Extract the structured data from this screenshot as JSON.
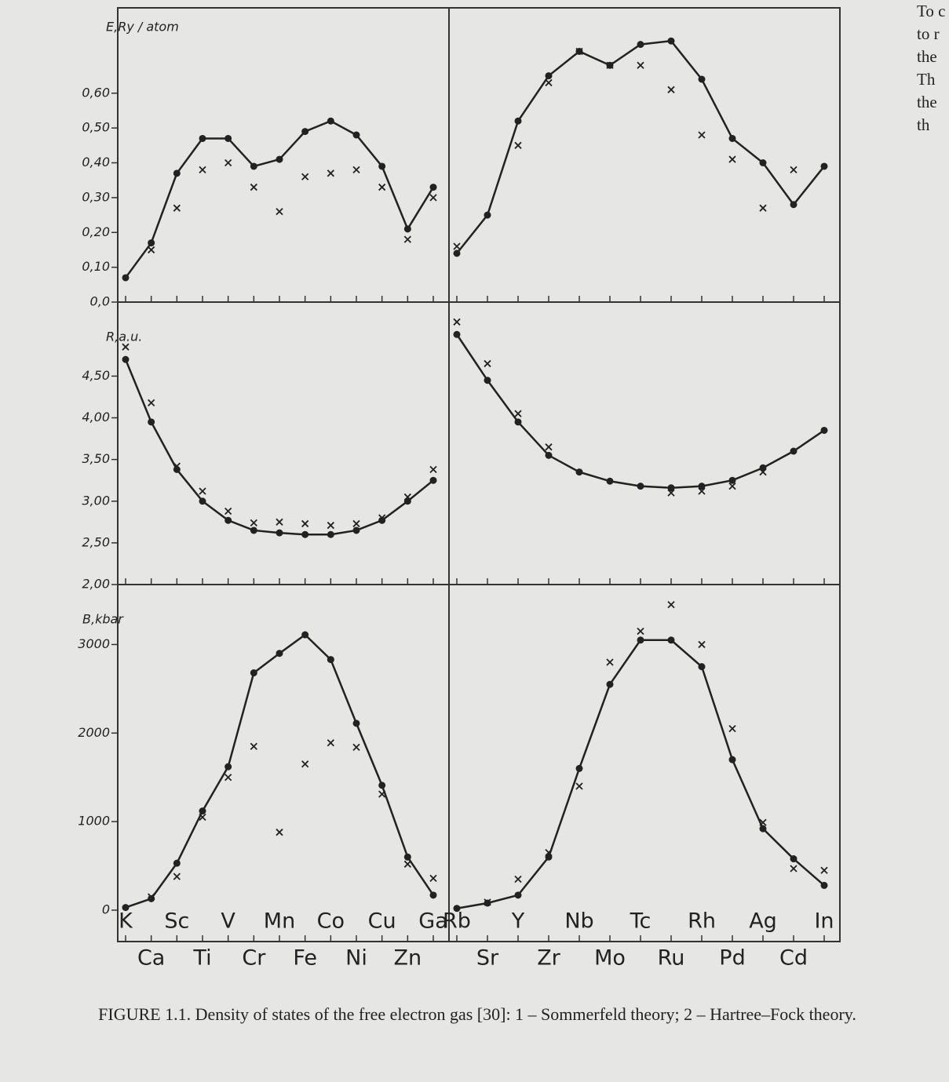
{
  "chart_data": [
    {
      "type": "line",
      "ylabel": "E,Ry / atom",
      "ylim": [
        0,
        0.8
      ],
      "yticks": [
        {
          "value": 0,
          "label": "0,0"
        },
        {
          "value": 0.1,
          "label": "0,10"
        },
        {
          "value": 0.2,
          "label": "0,20"
        },
        {
          "value": 0.3,
          "label": "0,30"
        },
        {
          "value": 0.4,
          "label": "0,40"
        },
        {
          "value": 0.5,
          "label": "0,50"
        },
        {
          "value": 0.6,
          "label": "0,60"
        }
      ],
      "series": [
        {
          "color": "#222222",
          "marker": "dot",
          "values": [
            0.07,
            0.17,
            0.37,
            0.47,
            0.47,
            0.39,
            0.41,
            0.49,
            0.52,
            0.48,
            0.39,
            0.21,
            0.33
          ]
        },
        {
          "color": "#222222",
          "marker": "cross",
          "values": [
            null,
            0.15,
            0.27,
            0.38,
            0.4,
            0.33,
            0.26,
            0.36,
            0.37,
            0.38,
            0.33,
            0.18,
            0.3
          ]
        }
      ]
    },
    {
      "type": "line",
      "ylim": [
        0,
        0.8
      ],
      "series": [
        {
          "color": "#222222",
          "marker": "dot",
          "values": [
            0.14,
            0.25,
            0.52,
            0.65,
            0.72,
            0.68,
            0.74,
            0.75,
            0.64,
            0.47,
            0.4,
            0.28,
            0.39
          ]
        },
        {
          "color": "#222222",
          "marker": "cross",
          "values": [
            0.16,
            null,
            0.45,
            0.63,
            0.72,
            0.68,
            0.68,
            0.61,
            0.48,
            0.41,
            0.27,
            0.38,
            null
          ]
        }
      ]
    },
    {
      "type": "line",
      "ylabel": "R,a.u.",
      "ylim": [
        2,
        5.2
      ],
      "yticks": [
        {
          "value": 2,
          "label": "2,00"
        },
        {
          "value": 2.5,
          "label": "2,50"
        },
        {
          "value": 3,
          "label": "3,00"
        },
        {
          "value": 3.5,
          "label": "3,50"
        },
        {
          "value": 4,
          "label": "4,00"
        },
        {
          "value": 4.5,
          "label": "4,50"
        }
      ],
      "series": [
        {
          "color": "#222222",
          "marker": "dot",
          "values": [
            4.7,
            3.95,
            3.38,
            3.0,
            2.77,
            2.65,
            2.62,
            2.6,
            2.6,
            2.65,
            2.77,
            3.0,
            3.25
          ]
        },
        {
          "color": "#222222",
          "marker": "cross",
          "values": [
            4.85,
            4.18,
            3.42,
            3.12,
            2.88,
            2.74,
            2.75,
            2.73,
            2.71,
            2.73,
            2.8,
            3.05,
            3.38
          ]
        }
      ]
    },
    {
      "type": "line",
      "ylim": [
        2,
        5.2
      ],
      "series": [
        {
          "color": "#222222",
          "marker": "dot",
          "values": [
            5.0,
            4.45,
            3.95,
            3.55,
            3.35,
            3.24,
            3.18,
            3.16,
            3.18,
            3.25,
            3.4,
            3.6,
            3.85
          ]
        },
        {
          "color": "#222222",
          "marker": "cross",
          "values": [
            5.15,
            4.65,
            4.05,
            3.65,
            null,
            null,
            null,
            3.1,
            3.12,
            3.18,
            3.35,
            null,
            null
          ]
        }
      ]
    },
    {
      "type": "line",
      "ylabel": "B,kbar",
      "ylim": [
        0,
        3500
      ],
      "yticks": [
        0,
        1000,
        2000,
        3000
      ],
      "categories": [
        "K",
        "Ca",
        "Sc",
        "Ti",
        "V",
        "Cr",
        "Mn",
        "Fe",
        "Co",
        "Ni",
        "Cu",
        "Zn",
        "Ga"
      ],
      "series": [
        {
          "color": "#222222",
          "marker": "dot",
          "values": [
            30,
            130,
            530,
            1120,
            1620,
            2680,
            2900,
            3110,
            2830,
            2110,
            1410,
            600,
            170
          ]
        },
        {
          "color": "#222222",
          "marker": "cross",
          "values": [
            null,
            150,
            380,
            1050,
            1500,
            1850,
            880,
            1650,
            1890,
            1840,
            1310,
            520,
            360
          ]
        }
      ]
    },
    {
      "type": "line",
      "ylim": [
        0,
        3500
      ],
      "categories": [
        "Rb",
        "Sr",
        "Y",
        "Zr",
        "Nb",
        "Mo",
        "Tc",
        "Ru",
        "Rh",
        "Pd",
        "Ag",
        "Cd",
        "In"
      ],
      "series": [
        {
          "color": "#222222",
          "marker": "dot",
          "values": [
            20,
            80,
            170,
            600,
            1600,
            2550,
            3050,
            3050,
            2750,
            1700,
            920,
            580,
            280
          ]
        },
        {
          "color": "#222222",
          "marker": "cross",
          "values": [
            null,
            90,
            350,
            650,
            1400,
            2800,
            3150,
            3450,
            3000,
            2050,
            990,
            470,
            450
          ]
        }
      ]
    }
  ],
  "caption": "FIGURE 1.1. Density of states of the free electron gas [30]: 1 – Sommerfeld theory; 2 – Hartree–Fock theory.",
  "margin_text": [
    "To c",
    "to r",
    "the",
    "Th",
    "the",
    "th"
  ]
}
